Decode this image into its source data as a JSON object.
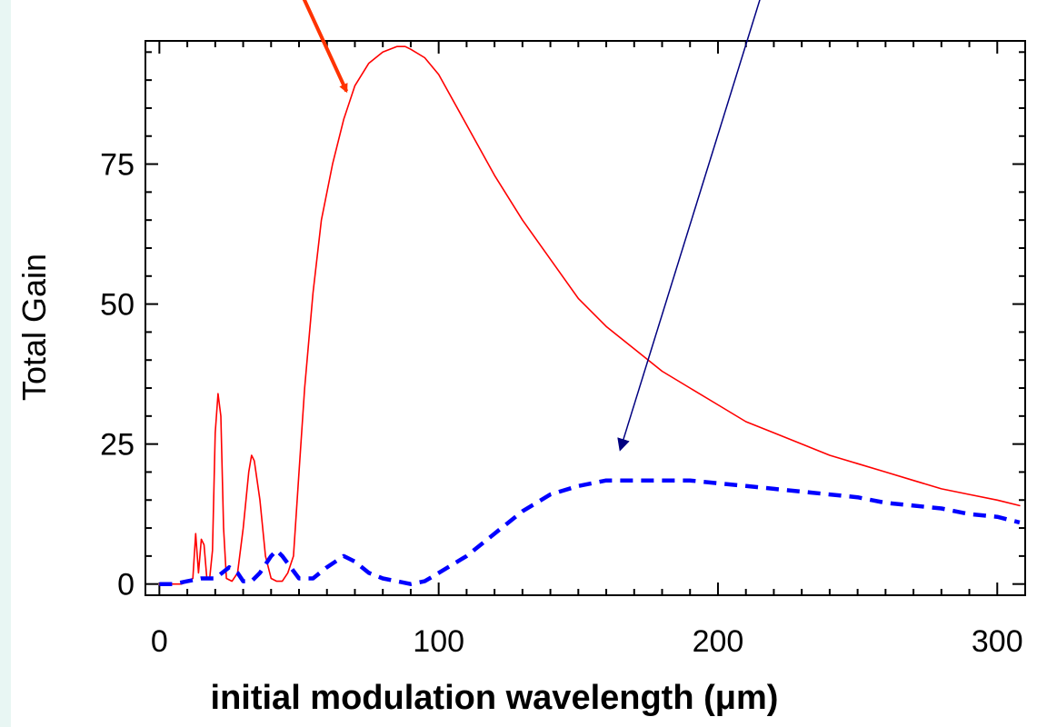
{
  "chart_data": {
    "type": "line",
    "title": "",
    "xlabel": "initial modulation wavelength (μm)",
    "ylabel": "Total Gain",
    "xlim": [
      -5,
      310
    ],
    "ylim": [
      -2,
      97
    ],
    "x_ticks": [
      0,
      100,
      200,
      300
    ],
    "y_ticks": [
      0,
      25,
      50,
      75
    ],
    "x_tick_labels": [
      "0",
      "100",
      "200",
      "300"
    ],
    "y_tick_labels": [
      "0",
      "25",
      "50",
      "75"
    ],
    "grid": false,
    "legend": "none",
    "series": [
      {
        "color": "#ff0000",
        "style": "solid",
        "x": [
          0,
          8,
          10,
          12,
          13,
          14,
          15,
          16,
          17,
          18,
          19,
          20,
          21,
          22,
          23,
          24,
          26,
          28,
          30,
          32,
          33,
          34,
          36,
          38,
          40,
          42,
          44,
          46,
          48,
          50,
          52,
          55,
          58,
          62,
          66,
          70,
          75,
          80,
          85,
          88,
          90,
          95,
          100,
          110,
          120,
          130,
          140,
          150,
          160,
          170,
          180,
          190,
          200,
          210,
          220,
          230,
          240,
          250,
          260,
          270,
          280,
          290,
          300,
          308
        ],
        "y": [
          0,
          0,
          0.5,
          1,
          9,
          2,
          8,
          7,
          1,
          1,
          6,
          27,
          34,
          30,
          10,
          1,
          0.5,
          2,
          10,
          20,
          23,
          22,
          15,
          5,
          1,
          0.5,
          0.5,
          2,
          5,
          20,
          35,
          52,
          65,
          75,
          83,
          89,
          93,
          95,
          96,
          96,
          95.5,
          94,
          91,
          82,
          73,
          65,
          58,
          51,
          46,
          42,
          38,
          35,
          32,
          29,
          27,
          25,
          23,
          21.5,
          20,
          18.5,
          17,
          16,
          15,
          14
        ]
      },
      {
        "color": "#0000ff",
        "style": "dashed",
        "x": [
          0,
          5,
          10,
          15,
          20,
          25,
          28,
          30,
          33,
          36,
          40,
          42,
          44,
          47,
          50,
          55,
          60,
          66,
          70,
          75,
          80,
          85,
          90,
          95,
          100,
          110,
          120,
          130,
          140,
          150,
          160,
          170,
          180,
          190,
          200,
          210,
          220,
          230,
          240,
          250,
          260,
          270,
          280,
          290,
          300,
          308
        ],
        "y": [
          0,
          0,
          0.5,
          1,
          1,
          3,
          2,
          0.5,
          0.5,
          2,
          5,
          6,
          5,
          3,
          1,
          1,
          3,
          5,
          4,
          2,
          1,
          0.5,
          0,
          0.5,
          2,
          5,
          9,
          13,
          16,
          17.5,
          18.5,
          18.5,
          18.5,
          18.5,
          18,
          17.5,
          17,
          16.5,
          16,
          15.5,
          14.5,
          14,
          13.5,
          12.5,
          12,
          11
        ]
      }
    ],
    "annotations": [
      {
        "type": "arrow",
        "color": "#ff3300",
        "from": [
          43,
          114
        ],
        "to": [
          67,
          88
        ]
      },
      {
        "type": "arrow",
        "color": "#000080",
        "from": [
          221,
          114
        ],
        "to": [
          165,
          24
        ]
      }
    ]
  }
}
